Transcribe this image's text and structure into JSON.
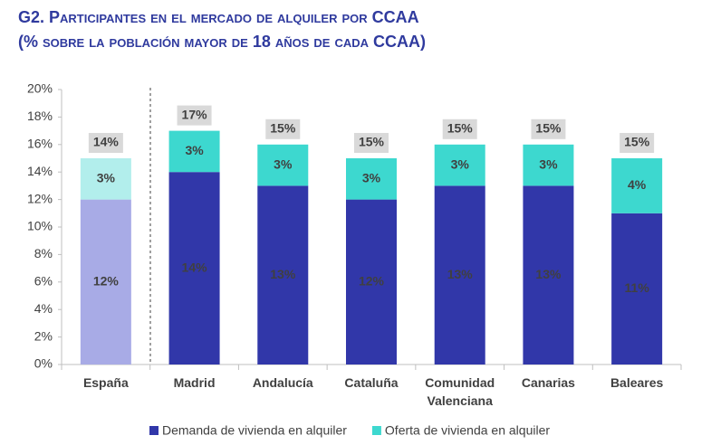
{
  "chart_data": {
    "type": "stacked-bar",
    "title": "G2. Participantes en el mercado de alquiler por CCAA",
    "subtitle": "(% sobre la población mayor de 18 años de cada CCAA)",
    "categories": [
      "España",
      "Madrid",
      "Andalucía",
      "Cataluña",
      "Comunidad Valenciana",
      "Canarias",
      "Baleares"
    ],
    "series": [
      {
        "name": "Demanda de vivienda en alquiler",
        "color": "#3137a9",
        "colors": [
          "#a8abe6",
          "#3137a9",
          "#3137a9",
          "#3137a9",
          "#3137a9",
          "#3137a9",
          "#3137a9"
        ],
        "values": [
          12,
          14,
          13,
          12,
          13,
          13,
          11
        ],
        "value_labels": [
          "12%",
          "14%",
          "13%",
          "12%",
          "13%",
          "13%",
          "11%"
        ]
      },
      {
        "name": "Oferta de vivienda en alquiler",
        "color": "#3dd8cf",
        "colors": [
          "#b2eeec",
          "#3dd8cf",
          "#3dd8cf",
          "#3dd8cf",
          "#3dd8cf",
          "#3dd8cf",
          "#3dd8cf"
        ],
        "values": [
          3,
          3,
          3,
          3,
          3,
          3,
          4
        ],
        "value_labels": [
          "3%",
          "3%",
          "3%",
          "3%",
          "3%",
          "3%",
          "4%"
        ]
      }
    ],
    "totals": [
      14,
      17,
      15,
      15,
      15,
      15,
      15
    ],
    "total_labels": [
      "14%",
      "17%",
      "15%",
      "15%",
      "15%",
      "15%",
      "15%"
    ],
    "ylim": [
      0,
      20
    ],
    "yticks": [
      {
        "value": 0,
        "label": "0%"
      },
      {
        "value": 2,
        "label": "2%"
      },
      {
        "value": 4,
        "label": "4%"
      },
      {
        "value": 6,
        "label": "6%"
      },
      {
        "value": 8,
        "label": "8%"
      },
      {
        "value": 10,
        "label": "10%"
      },
      {
        "value": 12,
        "label": "12%"
      },
      {
        "value": 14,
        "label": "14%"
      },
      {
        "value": 16,
        "label": "16%"
      },
      {
        "value": 18,
        "label": "18%"
      },
      {
        "value": 20,
        "label": "20%"
      }
    ],
    "grid": false,
    "legend": "bottom"
  }
}
